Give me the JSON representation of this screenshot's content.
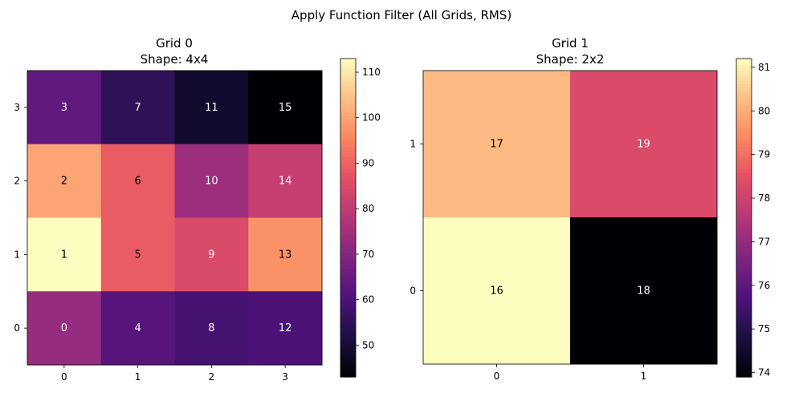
{
  "suptitle": "Apply Function Filter (All Grids, RMS)",
  "chart_data": [
    {
      "type": "heatmap",
      "title": "Grid 0",
      "subtitle": "Shape: 4x4",
      "colormap": "magma",
      "x_ticks": [
        "0",
        "1",
        "2",
        "3"
      ],
      "y_ticks": [
        "0",
        "1",
        "2",
        "3"
      ],
      "cells": [
        {
          "x": 0,
          "y": 3,
          "label": "3",
          "value": 64.0
        },
        {
          "x": 1,
          "y": 3,
          "label": "7",
          "value": 55.0
        },
        {
          "x": 2,
          "y": 3,
          "label": "11",
          "value": 49.0
        },
        {
          "x": 3,
          "y": 3,
          "label": "15",
          "value": 43.0
        },
        {
          "x": 0,
          "y": 2,
          "label": "2",
          "value": 100.0
        },
        {
          "x": 1,
          "y": 2,
          "label": "6",
          "value": 89.0
        },
        {
          "x": 2,
          "y": 2,
          "label": "10",
          "value": 74.0
        },
        {
          "x": 3,
          "y": 2,
          "label": "14",
          "value": 81.0
        },
        {
          "x": 0,
          "y": 1,
          "label": "1",
          "value": 113.0
        },
        {
          "x": 1,
          "y": 1,
          "label": "5",
          "value": 89.0
        },
        {
          "x": 2,
          "y": 1,
          "label": "9",
          "value": 85.0
        },
        {
          "x": 3,
          "y": 1,
          "label": "13",
          "value": 97.0
        },
        {
          "x": 0,
          "y": 0,
          "label": "0",
          "value": 73.0
        },
        {
          "x": 1,
          "y": 0,
          "label": "4",
          "value": 62.0
        },
        {
          "x": 2,
          "y": 0,
          "label": "8",
          "value": 59.0
        },
        {
          "x": 3,
          "y": 0,
          "label": "12",
          "value": 60.0
        }
      ],
      "colorbar": {
        "min": 43.0,
        "max": 113.0,
        "ticks": [
          50,
          60,
          70,
          80,
          90,
          100,
          110
        ]
      }
    },
    {
      "type": "heatmap",
      "title": "Grid 1",
      "subtitle": "Shape: 2x2",
      "colormap": "magma",
      "x_ticks": [
        "0",
        "1"
      ],
      "y_ticks": [
        "0",
        "1"
      ],
      "cells": [
        {
          "x": 0,
          "y": 1,
          "label": "17",
          "value": 80.2
        },
        {
          "x": 1,
          "y": 1,
          "label": "19",
          "value": 78.3
        },
        {
          "x": 0,
          "y": 0,
          "label": "16",
          "value": 81.2
        },
        {
          "x": 1,
          "y": 0,
          "label": "18",
          "value": 73.9
        }
      ],
      "colorbar": {
        "min": 73.9,
        "max": 81.2,
        "ticks": [
          74,
          75,
          76,
          77,
          78,
          79,
          80,
          81
        ]
      }
    }
  ]
}
